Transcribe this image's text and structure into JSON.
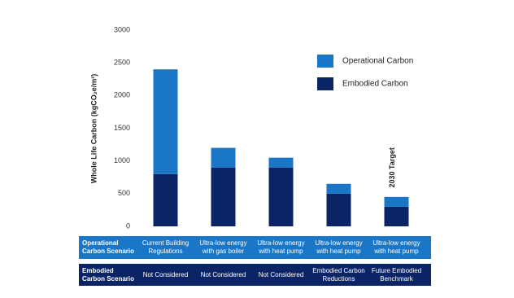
{
  "chart_data": {
    "type": "stacked-bar",
    "y_label": "Whole Life Carbon (kgCO₂e/m²)",
    "categories": [
      "Current Building Regulations",
      "Ultra-low energy with gas boiler",
      "Ultra-low energy with heat pump",
      "Ultra-low energy with heat pump",
      "Ultra-low energy with heat pump"
    ],
    "series": [
      {
        "name": "Embodied Carbon",
        "color": "#0b2466",
        "values": [
          800,
          900,
          900,
          500,
          300
        ]
      },
      {
        "name": "Operational Carbon",
        "color": "#1a76c6",
        "values": [
          1600,
          300,
          150,
          150,
          150
        ]
      }
    ],
    "ylim": [
      0,
      3000
    ],
    "yticks": [
      0,
      500,
      1000,
      1500,
      2000,
      2500,
      3000
    ],
    "annotation": "2030 Target",
    "table": {
      "operational_header": "Operational Carbon Scenario",
      "embodied_header": "Embodied Carbon Scenario",
      "embodied_cells": [
        "Not Considered",
        "Not Considered",
        "Not Considered",
        "Embodied Carbon Reductions",
        "Future Embodied Benchmark"
      ]
    }
  }
}
